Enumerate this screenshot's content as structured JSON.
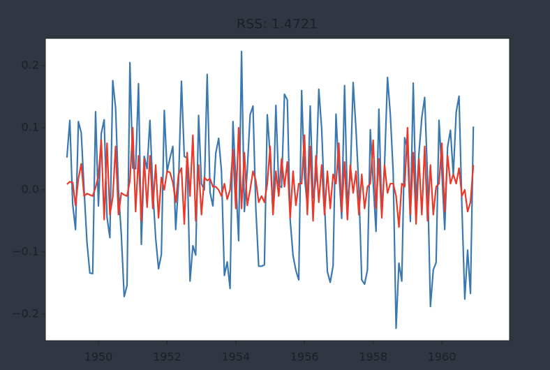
{
  "chart_data": {
    "type": "line",
    "title": "RSS: 1.4721",
    "x": [
      1949.083,
      1949.167,
      1949.25,
      1949.333,
      1949.417,
      1949.5,
      1949.583,
      1949.667,
      1949.75,
      1949.833,
      1949.917,
      1950.0,
      1950.083,
      1950.167,
      1950.25,
      1950.333,
      1950.417,
      1950.5,
      1950.583,
      1950.667,
      1950.75,
      1950.833,
      1950.917,
      1951.0,
      1951.083,
      1951.167,
      1951.25,
      1951.333,
      1951.417,
      1951.5,
      1951.583,
      1951.667,
      1951.75,
      1951.833,
      1951.917,
      1952.0,
      1952.083,
      1952.167,
      1952.25,
      1952.333,
      1952.417,
      1952.5,
      1952.583,
      1952.667,
      1952.75,
      1952.833,
      1952.917,
      1953.0,
      1953.083,
      1953.167,
      1953.25,
      1953.333,
      1953.417,
      1953.5,
      1953.583,
      1953.667,
      1953.75,
      1953.833,
      1953.917,
      1954.0,
      1954.083,
      1954.167,
      1954.25,
      1954.333,
      1954.417,
      1954.5,
      1954.583,
      1954.667,
      1954.75,
      1954.833,
      1954.917,
      1955.0,
      1955.083,
      1955.167,
      1955.25,
      1955.333,
      1955.417,
      1955.5,
      1955.583,
      1955.667,
      1955.75,
      1955.833,
      1955.917,
      1956.0,
      1956.083,
      1956.167,
      1956.25,
      1956.333,
      1956.417,
      1956.5,
      1956.583,
      1956.667,
      1956.75,
      1956.833,
      1956.917,
      1957.0,
      1957.083,
      1957.167,
      1957.25,
      1957.333,
      1957.417,
      1957.5,
      1957.583,
      1957.667,
      1957.75,
      1957.833,
      1957.917,
      1958.0,
      1958.083,
      1958.167,
      1958.25,
      1958.333,
      1958.417,
      1958.5,
      1958.583,
      1958.667,
      1958.75,
      1958.833,
      1958.917,
      1959.0,
      1959.083,
      1959.167,
      1959.25,
      1959.333,
      1959.417,
      1959.5,
      1959.583,
      1959.667,
      1959.75,
      1959.833,
      1959.917,
      1960.0,
      1960.083,
      1960.167,
      1960.25,
      1960.333,
      1960.417,
      1960.5,
      1960.583,
      1960.667,
      1960.75,
      1960.833,
      1960.917
    ],
    "series": [
      {
        "color": "#3a78b0",
        "values": [
          0.052,
          0.112,
          -0.023,
          -0.064,
          0.11,
          0.092,
          0.0,
          -0.085,
          -0.134,
          -0.135,
          0.126,
          -0.026,
          0.091,
          0.113,
          -0.044,
          -0.077,
          0.176,
          0.132,
          0.0,
          -0.073,
          -0.172,
          -0.154,
          0.205,
          0.035,
          0.034,
          0.171,
          -0.088,
          0.054,
          0.034,
          0.112,
          0.0,
          -0.078,
          -0.127,
          -0.104,
          0.128,
          0.03,
          0.051,
          0.07,
          -0.064,
          0.011,
          0.175,
          0.054,
          0.051,
          -0.147,
          -0.09,
          -0.105,
          0.12,
          0.01,
          0.0,
          0.186,
          -0.004,
          -0.026,
          0.059,
          0.083,
          0.03,
          -0.138,
          -0.116,
          -0.159,
          0.11,
          0.015,
          -0.082,
          0.223,
          -0.035,
          0.03,
          0.121,
          0.135,
          -0.03,
          -0.123,
          -0.123,
          -0.121,
          0.121,
          0.055,
          -0.038,
          0.136,
          0.007,
          0.004,
          0.154,
          0.145,
          -0.048,
          -0.106,
          -0.13,
          -0.145,
          0.16,
          0.021,
          -0.025,
          0.135,
          -0.013,
          0.016,
          0.162,
          0.099,
          -0.02,
          -0.132,
          -0.149,
          -0.122,
          0.122,
          0.029,
          -0.046,
          0.168,
          -0.023,
          0.02,
          0.173,
          0.097,
          0.004,
          -0.145,
          -0.152,
          -0.129,
          0.097,
          0.012,
          -0.067,
          0.13,
          -0.039,
          0.042,
          0.181,
          0.121,
          0.028,
          -0.223,
          -0.118,
          -0.147,
          0.084,
          0.066,
          -0.051,
          0.172,
          -0.025,
          0.059,
          0.117,
          0.149,
          0.02,
          -0.188,
          -0.129,
          -0.117,
          0.112,
          0.029,
          -0.064,
          0.069,
          0.096,
          0.024,
          0.125,
          0.151,
          -0.026,
          -0.176,
          -0.097,
          -0.167,
          0.102
        ]
      },
      {
        "color": "#e8392b",
        "values": [
          0.009,
          0.013,
          0.012,
          -0.025,
          0.018,
          0.042,
          -0.01,
          -0.006,
          -0.008,
          -0.01,
          0.004,
          0.022,
          0.08,
          -0.048,
          0.075,
          -0.04,
          -0.012,
          0.07,
          -0.04,
          -0.005,
          -0.008,
          -0.01,
          0.015,
          0.1,
          -0.035,
          0.055,
          -0.05,
          0.05,
          -0.028,
          0.055,
          -0.03,
          0.04,
          -0.045,
          0.02,
          0.0,
          0.03,
          0.028,
          0.012,
          -0.02,
          0.025,
          0.035,
          -0.055,
          0.06,
          -0.01,
          0.088,
          -0.05,
          0.04,
          -0.04,
          0.02,
          0.015,
          0.018,
          0.005,
          0.005,
          0.0,
          -0.01,
          0.01,
          -0.015,
          0.0,
          0.065,
          -0.03,
          0.1,
          -0.03,
          0.06,
          -0.025,
          0.0,
          0.03,
          0.015,
          -0.02,
          -0.01,
          -0.02,
          0.01,
          0.07,
          -0.04,
          0.03,
          -0.01,
          0.05,
          0.005,
          0.045,
          -0.045,
          0.03,
          -0.025,
          0.01,
          0.01,
          0.088,
          -0.04,
          0.07,
          -0.05,
          0.055,
          -0.02,
          0.04,
          -0.04,
          0.03,
          -0.03,
          0.025,
          0.01,
          0.075,
          -0.035,
          0.045,
          -0.048,
          0.04,
          -0.005,
          0.03,
          -0.04,
          0.025,
          -0.03,
          0.005,
          0.01,
          0.08,
          -0.03,
          0.05,
          -0.045,
          0.04,
          -0.005,
          0.01,
          0.01,
          -0.01,
          -0.06,
          0.01,
          0.005,
          0.1,
          -0.04,
          0.06,
          -0.055,
          0.05,
          -0.04,
          0.07,
          -0.05,
          0.04,
          -0.04,
          0.005,
          0.01,
          0.075,
          -0.035,
          0.055,
          0.01,
          0.025,
          0.01,
          0.035,
          -0.01,
          0.0,
          -0.035,
          -0.02,
          0.04
        ]
      }
    ],
    "xlim": [
      1948.455,
      1961.97
    ],
    "ylim": [
      -0.243,
      0.244
    ],
    "xticks": [
      1950,
      1952,
      1954,
      1956,
      1958,
      1960
    ],
    "yticks": [
      {
        "value": -0.2,
        "label": "−0.2"
      },
      {
        "value": -0.1,
        "label": "−0.1"
      },
      {
        "value": 0,
        "label": "0.0"
      },
      0.1,
      0.2
    ],
    "grid": false
  }
}
